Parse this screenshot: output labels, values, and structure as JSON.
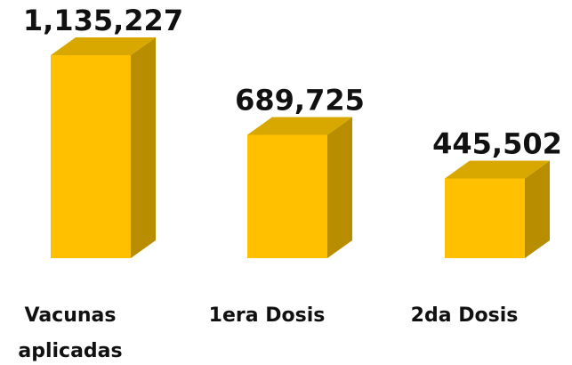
{
  "chart_data": {
    "type": "bar3d",
    "categories": [
      "Vacunas aplicadas",
      "1era Dosis",
      "2da Dosis"
    ],
    "values": [
      1135227,
      689725,
      445502
    ],
    "value_labels": [
      "1,135,227",
      "689,725",
      "445,502"
    ],
    "color": "#FFC000"
  }
}
